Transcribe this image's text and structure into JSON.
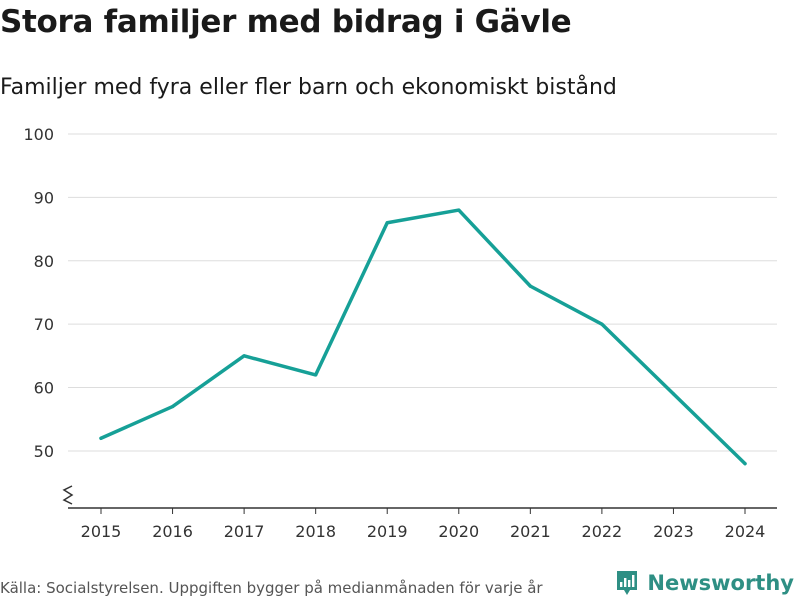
{
  "title": "Stora familjer med bidrag i Gävle",
  "subtitle": "Familjer med fyra eller fler barn och ekonomiskt bistånd",
  "source": "Källa: Socialstyrelsen. Uppgiften bygger på medianmånaden för varje år",
  "brand": {
    "name": "Newsworthy",
    "icon": "newsworthy-logo-icon"
  },
  "colors": {
    "line": "#16a097",
    "grid": "#dddddd",
    "axis": "#333333",
    "brand": "#2e8f84"
  },
  "chart_data": {
    "type": "line",
    "title": "Stora familjer med bidrag i Gävle",
    "subtitle": "Familjer med fyra eller fler barn och ekonomiskt bistånd",
    "xlabel": "",
    "ylabel": "",
    "categories": [
      "2015",
      "2016",
      "2017",
      "2018",
      "2019",
      "2020",
      "2021",
      "2022",
      "2023",
      "2024"
    ],
    "series": [
      {
        "name": "Familjer",
        "values": [
          52,
          57,
          65,
          62,
          86,
          88,
          76,
          70,
          59,
          48
        ]
      }
    ],
    "y_ticks": [
      50,
      60,
      70,
      80,
      90,
      100
    ],
    "ylim": [
      41,
      100
    ],
    "y_axis_break": true,
    "grid": true,
    "legend": "none"
  }
}
